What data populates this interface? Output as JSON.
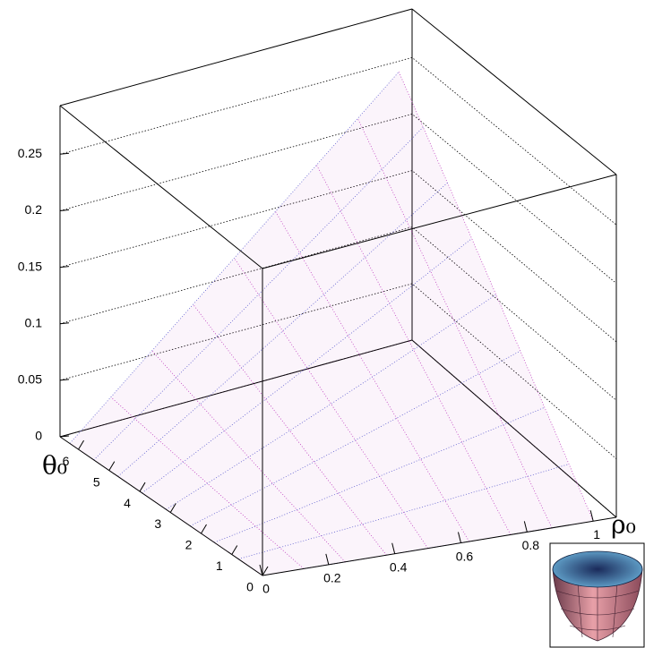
{
  "chart_data": {
    "type": "surface3d",
    "xlabel": "ρ₀",
    "ylabel": "θ₀",
    "x": [
      0,
      0.125,
      0.25,
      0.375,
      0.5,
      0.625,
      0.75,
      0.875,
      1
    ],
    "y": [
      0,
      0.785,
      1.571,
      2.356,
      3.142,
      3.927,
      4.712,
      5.498,
      6.283
    ],
    "z": [
      [
        0,
        0,
        0,
        0,
        0,
        0,
        0,
        0,
        0
      ],
      [
        0,
        0.0039,
        0.0078,
        0.0117,
        0.0156,
        0.0195,
        0.0234,
        0.0273,
        0.0313
      ],
      [
        0,
        0.0078,
        0.0156,
        0.0234,
        0.0313,
        0.0391,
        0.0469,
        0.0547,
        0.0625
      ],
      [
        0,
        0.0117,
        0.0234,
        0.0352,
        0.0469,
        0.0586,
        0.0703,
        0.082,
        0.0938
      ],
      [
        0,
        0.0156,
        0.0313,
        0.0469,
        0.0625,
        0.0781,
        0.0938,
        0.1094,
        0.125
      ],
      [
        0,
        0.0195,
        0.0391,
        0.0586,
        0.0781,
        0.0977,
        0.1172,
        0.1367,
        0.1563
      ],
      [
        0,
        0.0234,
        0.0469,
        0.0703,
        0.0938,
        0.1172,
        0.1406,
        0.1641,
        0.1875
      ],
      [
        0,
        0.0273,
        0.0547,
        0.082,
        0.1094,
        0.1367,
        0.1641,
        0.1914,
        0.2188
      ],
      [
        0,
        0.0313,
        0.0625,
        0.0938,
        0.125,
        0.1563,
        0.1875,
        0.2188,
        0.25
      ]
    ],
    "color": "#c040c0",
    "xlim": [
      0,
      1.07
    ],
    "ylim": [
      0,
      6.6
    ],
    "zlim": [
      0,
      0.293
    ],
    "xticks": [
      0,
      0.2,
      0.4,
      0.6,
      0.8,
      1
    ],
    "yticks": [
      0,
      1,
      2,
      3,
      4,
      5,
      6
    ],
    "zticks": [
      0,
      0.05,
      0.1,
      0.15,
      0.2,
      0.25
    ],
    "grid": true
  }
}
